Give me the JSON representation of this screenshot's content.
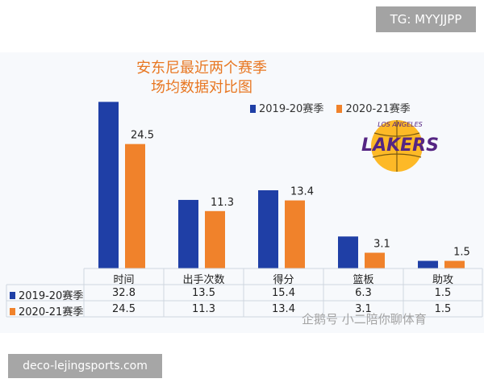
{
  "tag": "TG: MYYJJPP",
  "source_badge": "deco-lejingsports.com",
  "watermark": "企鹅号 小二陪你聊体育",
  "logo_text": {
    "top": "LOS ANGELES",
    "main": "LAKERS"
  },
  "colors": {
    "series1": "#1f3fa6",
    "series2": "#f0822b",
    "title": "#e87722",
    "gold": "#fdb927",
    "purple": "#552583"
  },
  "chart_data": {
    "type": "bar",
    "title_line1": "安东尼最近两个赛季",
    "title_line2": "场均数据对比图",
    "categories": [
      "时间",
      "出手次数",
      "得分",
      "篮板",
      "助攻"
    ],
    "series": [
      {
        "name": "2019-20赛季",
        "values": [
          32.8,
          13.5,
          15.4,
          6.3,
          1.5
        ],
        "display": [
          "32.8",
          "13.5",
          "15.4",
          "6.3",
          "1.5"
        ]
      },
      {
        "name": "2020-21赛季",
        "values": [
          24.5,
          11.3,
          13.4,
          3.1,
          1.5
        ],
        "display": [
          "24.5",
          "11.3",
          "13.4",
          "3.1",
          "1.5"
        ]
      }
    ],
    "data_labels_series2": [
      "24.5",
      "11.3",
      "13.4",
      "3.1",
      "1.5"
    ],
    "legend_position": "top-right",
    "grid": false
  }
}
